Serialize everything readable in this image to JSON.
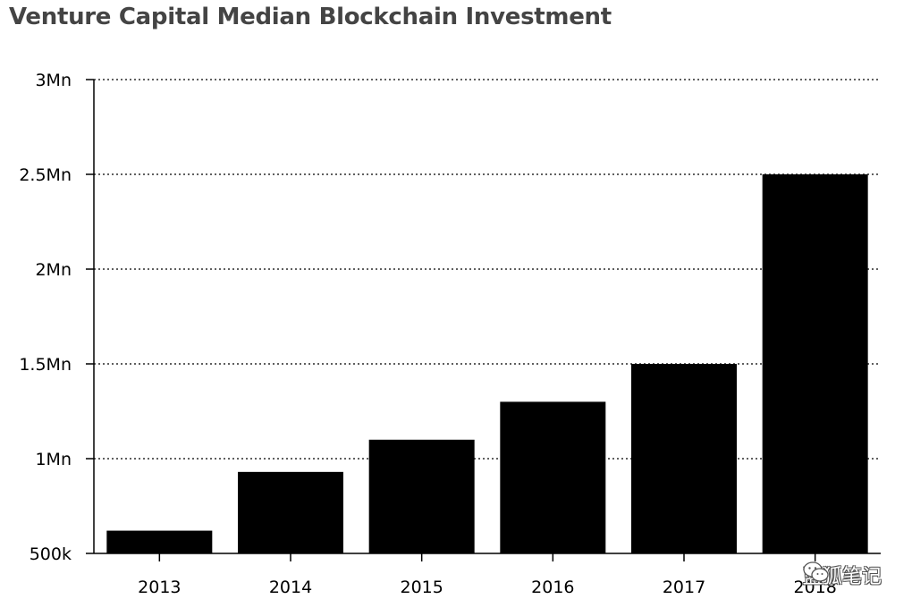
{
  "chart_data": {
    "type": "bar",
    "title": "Venture Capital Median Blockchain Investment",
    "categories": [
      "2013",
      "2014",
      "2015",
      "2016",
      "2017",
      "2018"
    ],
    "values": [
      620000,
      930000,
      1100000,
      1300000,
      1500000,
      2500000
    ],
    "ylim": [
      500000,
      3000000
    ],
    "yticks": [
      500000,
      1000000,
      1500000,
      2000000,
      2500000,
      3000000
    ],
    "ytick_labels": [
      "500k",
      "1Mn",
      "1.5Mn",
      "2Mn",
      "2.5Mn",
      "3Mn"
    ],
    "xlabel": "",
    "ylabel": "",
    "grid": "horizontal dotted",
    "bar_color": "#000000"
  },
  "watermark": {
    "text": "蓝狐笔记",
    "icon": "wechat-icon"
  }
}
